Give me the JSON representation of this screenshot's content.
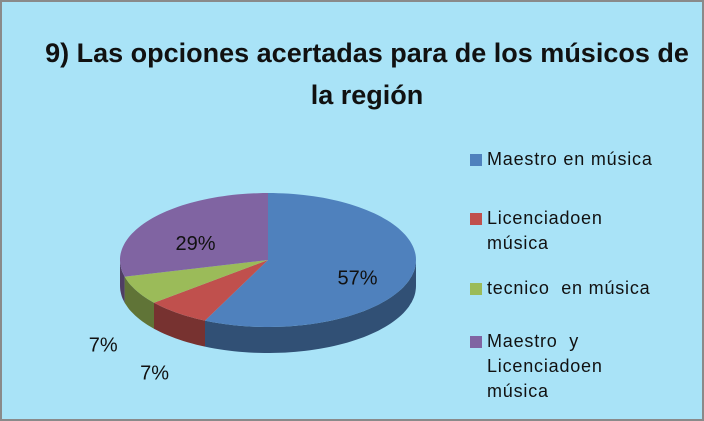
{
  "chart_data": {
    "type": "pie",
    "title": "9) Las opciones acertadas para de los músicos de la región",
    "categories": [
      "Maestro en música",
      "Licenciadoen música",
      "tecnico  en música",
      "Maestro  y Licenciadoen música"
    ],
    "values": [
      57,
      7,
      7,
      29
    ],
    "value_labels": [
      "57%",
      "7%",
      "7%",
      "29%"
    ],
    "colors": [
      "#4f81bd",
      "#c0504d",
      "#9bbb59",
      "#8064a2"
    ],
    "legend": "right"
  }
}
